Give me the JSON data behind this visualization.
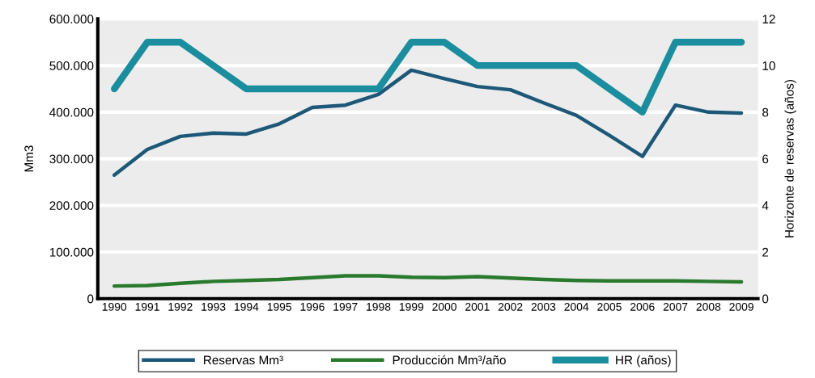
{
  "chart_data": {
    "type": "line",
    "ylabel": "Mm3",
    "y2label": "Horizonte de reservas (años)",
    "categories": [
      "1990",
      "1991",
      "1992",
      "1993",
      "1994",
      "1995",
      "1996",
      "1997",
      "1998",
      "1999",
      "2000",
      "2001",
      "2002",
      "2003",
      "2004",
      "2005",
      "2006",
      "2007",
      "2008",
      "2009"
    ],
    "series": [
      {
        "name": "Reservas Mm³",
        "color": "#1d5878",
        "values": [
          265000,
          320000,
          348000,
          355000,
          353000,
          375000,
          410000,
          415000,
          438000,
          490000,
          472000,
          455000,
          448000,
          420000,
          393000,
          350000,
          305000,
          415000,
          400000,
          398000
        ]
      },
      {
        "name": "Producción Mm³/año",
        "color": "#2a7a2e",
        "values": [
          27000,
          28000,
          33000,
          37000,
          39000,
          41000,
          45000,
          49000,
          49000,
          46000,
          45000,
          47000,
          44000,
          41000,
          39000,
          38000,
          38000,
          38000,
          37000,
          36000
        ]
      },
      {
        "name": "HR (años)",
        "color": "#1a8d9e",
        "axis": "y2",
        "values": [
          9,
          11,
          11,
          10,
          9,
          9,
          9,
          9,
          9,
          11,
          11,
          10,
          10,
          10,
          10,
          9,
          8,
          11,
          11,
          11
        ]
      }
    ],
    "ylim": [
      0,
      600000
    ],
    "yticks": [
      {
        "value": 0,
        "label": "0"
      },
      {
        "value": 100000,
        "label": "100.000"
      },
      {
        "value": 200000,
        "label": "200.000"
      },
      {
        "value": 300000,
        "label": "300.000"
      },
      {
        "value": 400000,
        "label": "400.000"
      },
      {
        "value": 500000,
        "label": "500.000"
      },
      {
        "value": 600000,
        "label": "600.000"
      }
    ],
    "y2lim": [
      0,
      12
    ],
    "y2ticks": [
      0,
      2,
      4,
      6,
      8,
      10,
      12
    ],
    "grid": "y",
    "legend": "bottom",
    "marker": "none",
    "line_style": "solid"
  }
}
